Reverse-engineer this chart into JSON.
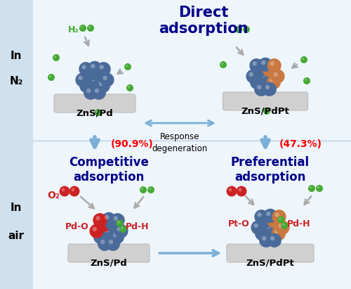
{
  "bg_color": "#ffffff",
  "top_panel_bg": "#dce8f5",
  "bottom_panel_bg": "#dce8f5",
  "left_panel_bg": "#d5e5f0",
  "substrate_color": "#d0d0d0",
  "pd_color": "#4a6b9a",
  "pt_color": "#c87840",
  "h2_color": "#44aa33",
  "o2_color": "#cc2222",
  "blue_arrow_color": "#7ab0d8",
  "gray_arrow_color": "#aaaaaa",
  "title": "Direct\nadsorption",
  "label_zns_pd": "ZnS/Pd",
  "label_zns_pdpt": "ZnS/PdPt",
  "label_competitive": "Competitive\nadsorption",
  "label_preferential": "Preferential\nadsorption",
  "label_response": "Response\ndegeneration",
  "label_90": "(90.9%)",
  "label_47": "(47.3%)",
  "label_h2": "H₂",
  "label_o2": "O₂",
  "label_pdo": "Pd-O",
  "label_pdh": "Pd-H",
  "label_pto": "Pt-O",
  "label_in": "In",
  "label_n2": "N₂",
  "label_air": "air"
}
